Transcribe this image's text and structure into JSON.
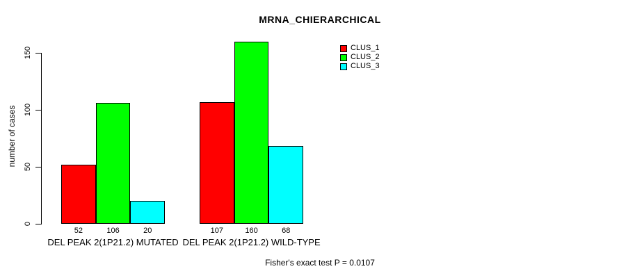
{
  "chart_data": {
    "type": "bar",
    "title": "MRNA_CHIERARCHICAL",
    "xlabel": "",
    "ylabel": "number of cases",
    "ylim": [
      0,
      150
    ],
    "yticks": [
      0,
      50,
      100,
      150
    ],
    "grid": false,
    "legend_position": "top-right-inside",
    "categories": [
      "DEL PEAK 2(1P21.2) MUTATED",
      "DEL PEAK 2(1P21.2) WILD-TYPE"
    ],
    "series": [
      {
        "name": "CLUS_1",
        "color": "#ff0000",
        "values": [
          52,
          107
        ]
      },
      {
        "name": "CLUS_2",
        "color": "#00ff00",
        "values": [
          106,
          160
        ]
      },
      {
        "name": "CLUS_3",
        "color": "#00ffff",
        "values": [
          20,
          68
        ]
      }
    ],
    "bar_value_labels": [
      [
        52,
        106,
        20
      ],
      [
        107,
        160,
        68
      ]
    ],
    "annotation": "Fisher's exact test P = 0.0107"
  },
  "colors": {
    "axis": "#000000",
    "background": "#ffffff",
    "clus_1": "#ff0000",
    "clus_2": "#00ff00",
    "clus_3": "#00ffff"
  }
}
